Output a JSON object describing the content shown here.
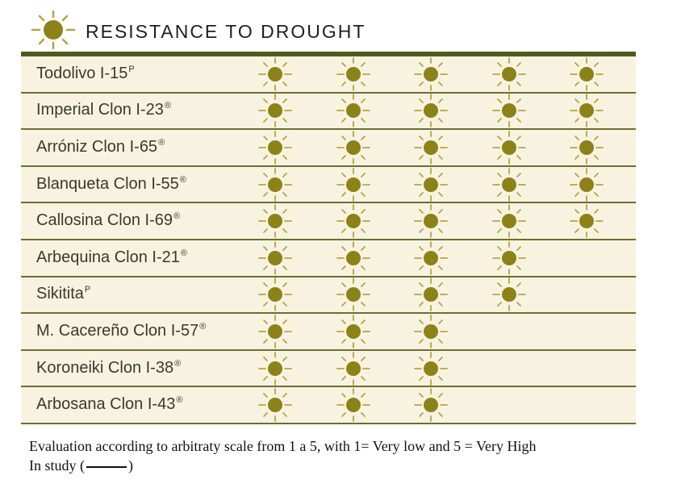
{
  "header": {
    "title": "RESISTANCE TO DROUGHT",
    "icon": "sun-icon"
  },
  "colors": {
    "sun": "#8d8218",
    "rays": "#b0a640",
    "bar": "#4f5a1d",
    "row_bg": "#f8f3e1",
    "divider": "#6b6f2e"
  },
  "chart_data": {
    "type": "table",
    "title": "RESISTANCE TO DROUGHT",
    "scale": [
      1,
      5
    ],
    "rows": [
      {
        "name": "Todolivo I-15",
        "sup": "P",
        "value": 5
      },
      {
        "name": "Imperial Clon I-23",
        "sup": "®",
        "value": 5
      },
      {
        "name": "Arróniz Clon I-65",
        "sup": "®",
        "value": 5
      },
      {
        "name": "Blanqueta Clon I-55",
        "sup": "®",
        "value": 5
      },
      {
        "name": "Callosina Clon I-69",
        "sup": "®",
        "value": 5
      },
      {
        "name": "Arbequina Clon I-21",
        "sup": "®",
        "value": 4
      },
      {
        "name": "Sikitita",
        "sup": "P",
        "value": 4
      },
      {
        "name": "M. Cacereño Clon I-57",
        "sup": "®",
        "value": 3
      },
      {
        "name": "Koroneiki Clon I-38",
        "sup": "®",
        "value": 3
      },
      {
        "name": "Arbosana Clon I-43",
        "sup": "®",
        "value": 3
      }
    ]
  },
  "footer": {
    "line1": "Evaluation according to arbitraty scale from 1 a 5, with 1= Very low and 5 = Very High",
    "line2_prefix": "In study (",
    "line2_suffix": ")"
  }
}
